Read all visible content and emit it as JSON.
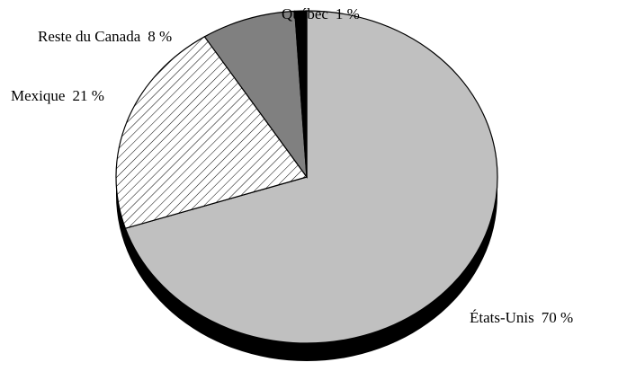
{
  "chart_data": {
    "type": "pie",
    "categories": [
      "États-Unis",
      "Mexique",
      "Reste du Canada",
      "Québec"
    ],
    "values": [
      70,
      21,
      8,
      1
    ],
    "value_labels": [
      "70 %",
      "21 %",
      "8 %",
      "1 %"
    ],
    "colors": [
      "#c0c0c0",
      "hatch",
      "#808080",
      "#000000"
    ]
  }
}
